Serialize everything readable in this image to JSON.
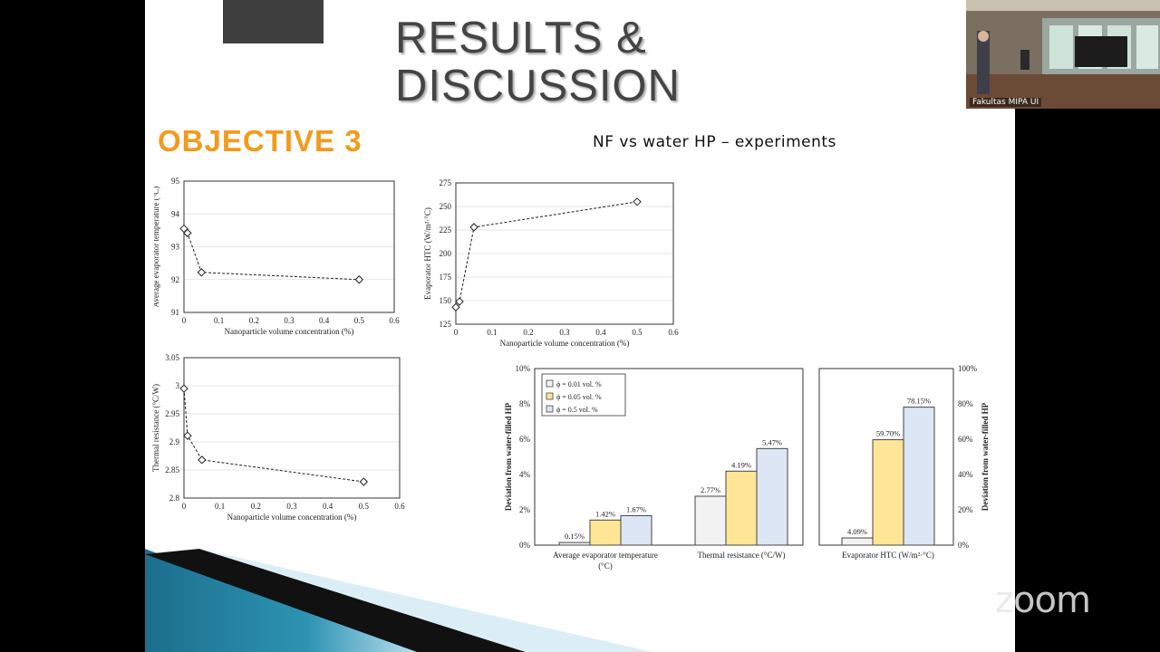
{
  "slide": {
    "title_line1": "RESULTS &",
    "title_line2": "DISCUSSION",
    "objective": "OBJECTIVE 3",
    "subtitle": "NF vs water HP – experiments"
  },
  "webcam": {
    "label": "Fakultas MIPA UI"
  },
  "zoom_logo": "zoom",
  "chart_data": [
    {
      "id": "chart_temp",
      "type": "line",
      "xlabel": "Nanoparticle volume concentration (%)",
      "ylabel": "Average evaporator temperature (°C)",
      "xlim": [
        0,
        0.6
      ],
      "ylim": [
        91,
        95
      ],
      "xticks": [
        "0",
        "0.1",
        "0.2",
        "0.3",
        "0.4",
        "0.5",
        "0.6"
      ],
      "yticks": [
        "91",
        "92",
        "93",
        "94",
        "95"
      ],
      "x": [
        0,
        0.01,
        0.05,
        0.5
      ],
      "y": [
        93.55,
        93.42,
        92.22,
        92.0
      ]
    },
    {
      "id": "chart_htc",
      "type": "line",
      "xlabel": "Nanoparticle volume concentration (%)",
      "ylabel": "Evaporator HTC (W/m²·°C)",
      "xlim": [
        0,
        0.6
      ],
      "ylim": [
        125,
        275
      ],
      "xticks": [
        "0",
        "0.1",
        "0.2",
        "0.3",
        "0.4",
        "0.5",
        "0.6"
      ],
      "yticks": [
        "125",
        "150",
        "175",
        "200",
        "225",
        "250",
        "275"
      ],
      "x": [
        0,
        0.01,
        0.05,
        0.5
      ],
      "y": [
        143,
        149,
        228,
        255
      ]
    },
    {
      "id": "chart_res",
      "type": "line",
      "xlabel": "Nanoparticle volume concentration (%)",
      "ylabel": "Thermal resistance (°C/W)",
      "xlim": [
        0,
        0.6
      ],
      "ylim": [
        2.8,
        3.05
      ],
      "xticks": [
        "0",
        "0.1",
        "0.2",
        "0.3",
        "0.4",
        "0.5",
        "0.6"
      ],
      "yticks": [
        "2.8",
        "2.85",
        "2.9",
        "2.95",
        "3",
        "3.05"
      ],
      "x": [
        0,
        0.01,
        0.05,
        0.5
      ],
      "y": [
        2.995,
        2.911,
        2.868,
        2.829
      ]
    },
    {
      "id": "chart_dev",
      "type": "bar",
      "ylabel": "Deviation from water-filled HP",
      "ylabel_right": "Deviation from water-filled HP",
      "yticks_left": [
        "0%",
        "2%",
        "4%",
        "6%",
        "8%",
        "10%"
      ],
      "yticks_right": [
        "0%",
        "20%",
        "40%",
        "60%",
        "80%",
        "100%"
      ],
      "ylim_left": [
        0,
        10
      ],
      "ylim_right": [
        0,
        100
      ],
      "legend_position": "top-left",
      "series": [
        {
          "name": "ϕ = 0.01 vol. %",
          "color": "#f2f2f2"
        },
        {
          "name": "ϕ = 0.05 vol. %",
          "color": "#ffe697"
        },
        {
          "name": "ϕ = 0.5 vol. %",
          "color": "#dce6f4"
        }
      ],
      "groups": [
        {
          "label_line1": "Average evaporator temperature",
          "label_line2": "(°C)",
          "axis": "left",
          "values": [
            0.15,
            1.42,
            1.67
          ],
          "labels": [
            "0.15%",
            "1.42%",
            "1.67%"
          ]
        },
        {
          "label_line1": "Thermal resistance (°C/W)",
          "label_line2": "",
          "axis": "left",
          "values": [
            2.77,
            4.19,
            5.47
          ],
          "labels": [
            "2.77%",
            "4.19%",
            "5.47%"
          ]
        },
        {
          "label_line1": "Evaporator HTC (W/m²·°C)",
          "label_line2": "",
          "axis": "right",
          "values": [
            4.09,
            59.7,
            78.15
          ],
          "labels": [
            "4.09%",
            "59.70%",
            "78.15%"
          ]
        }
      ]
    }
  ]
}
